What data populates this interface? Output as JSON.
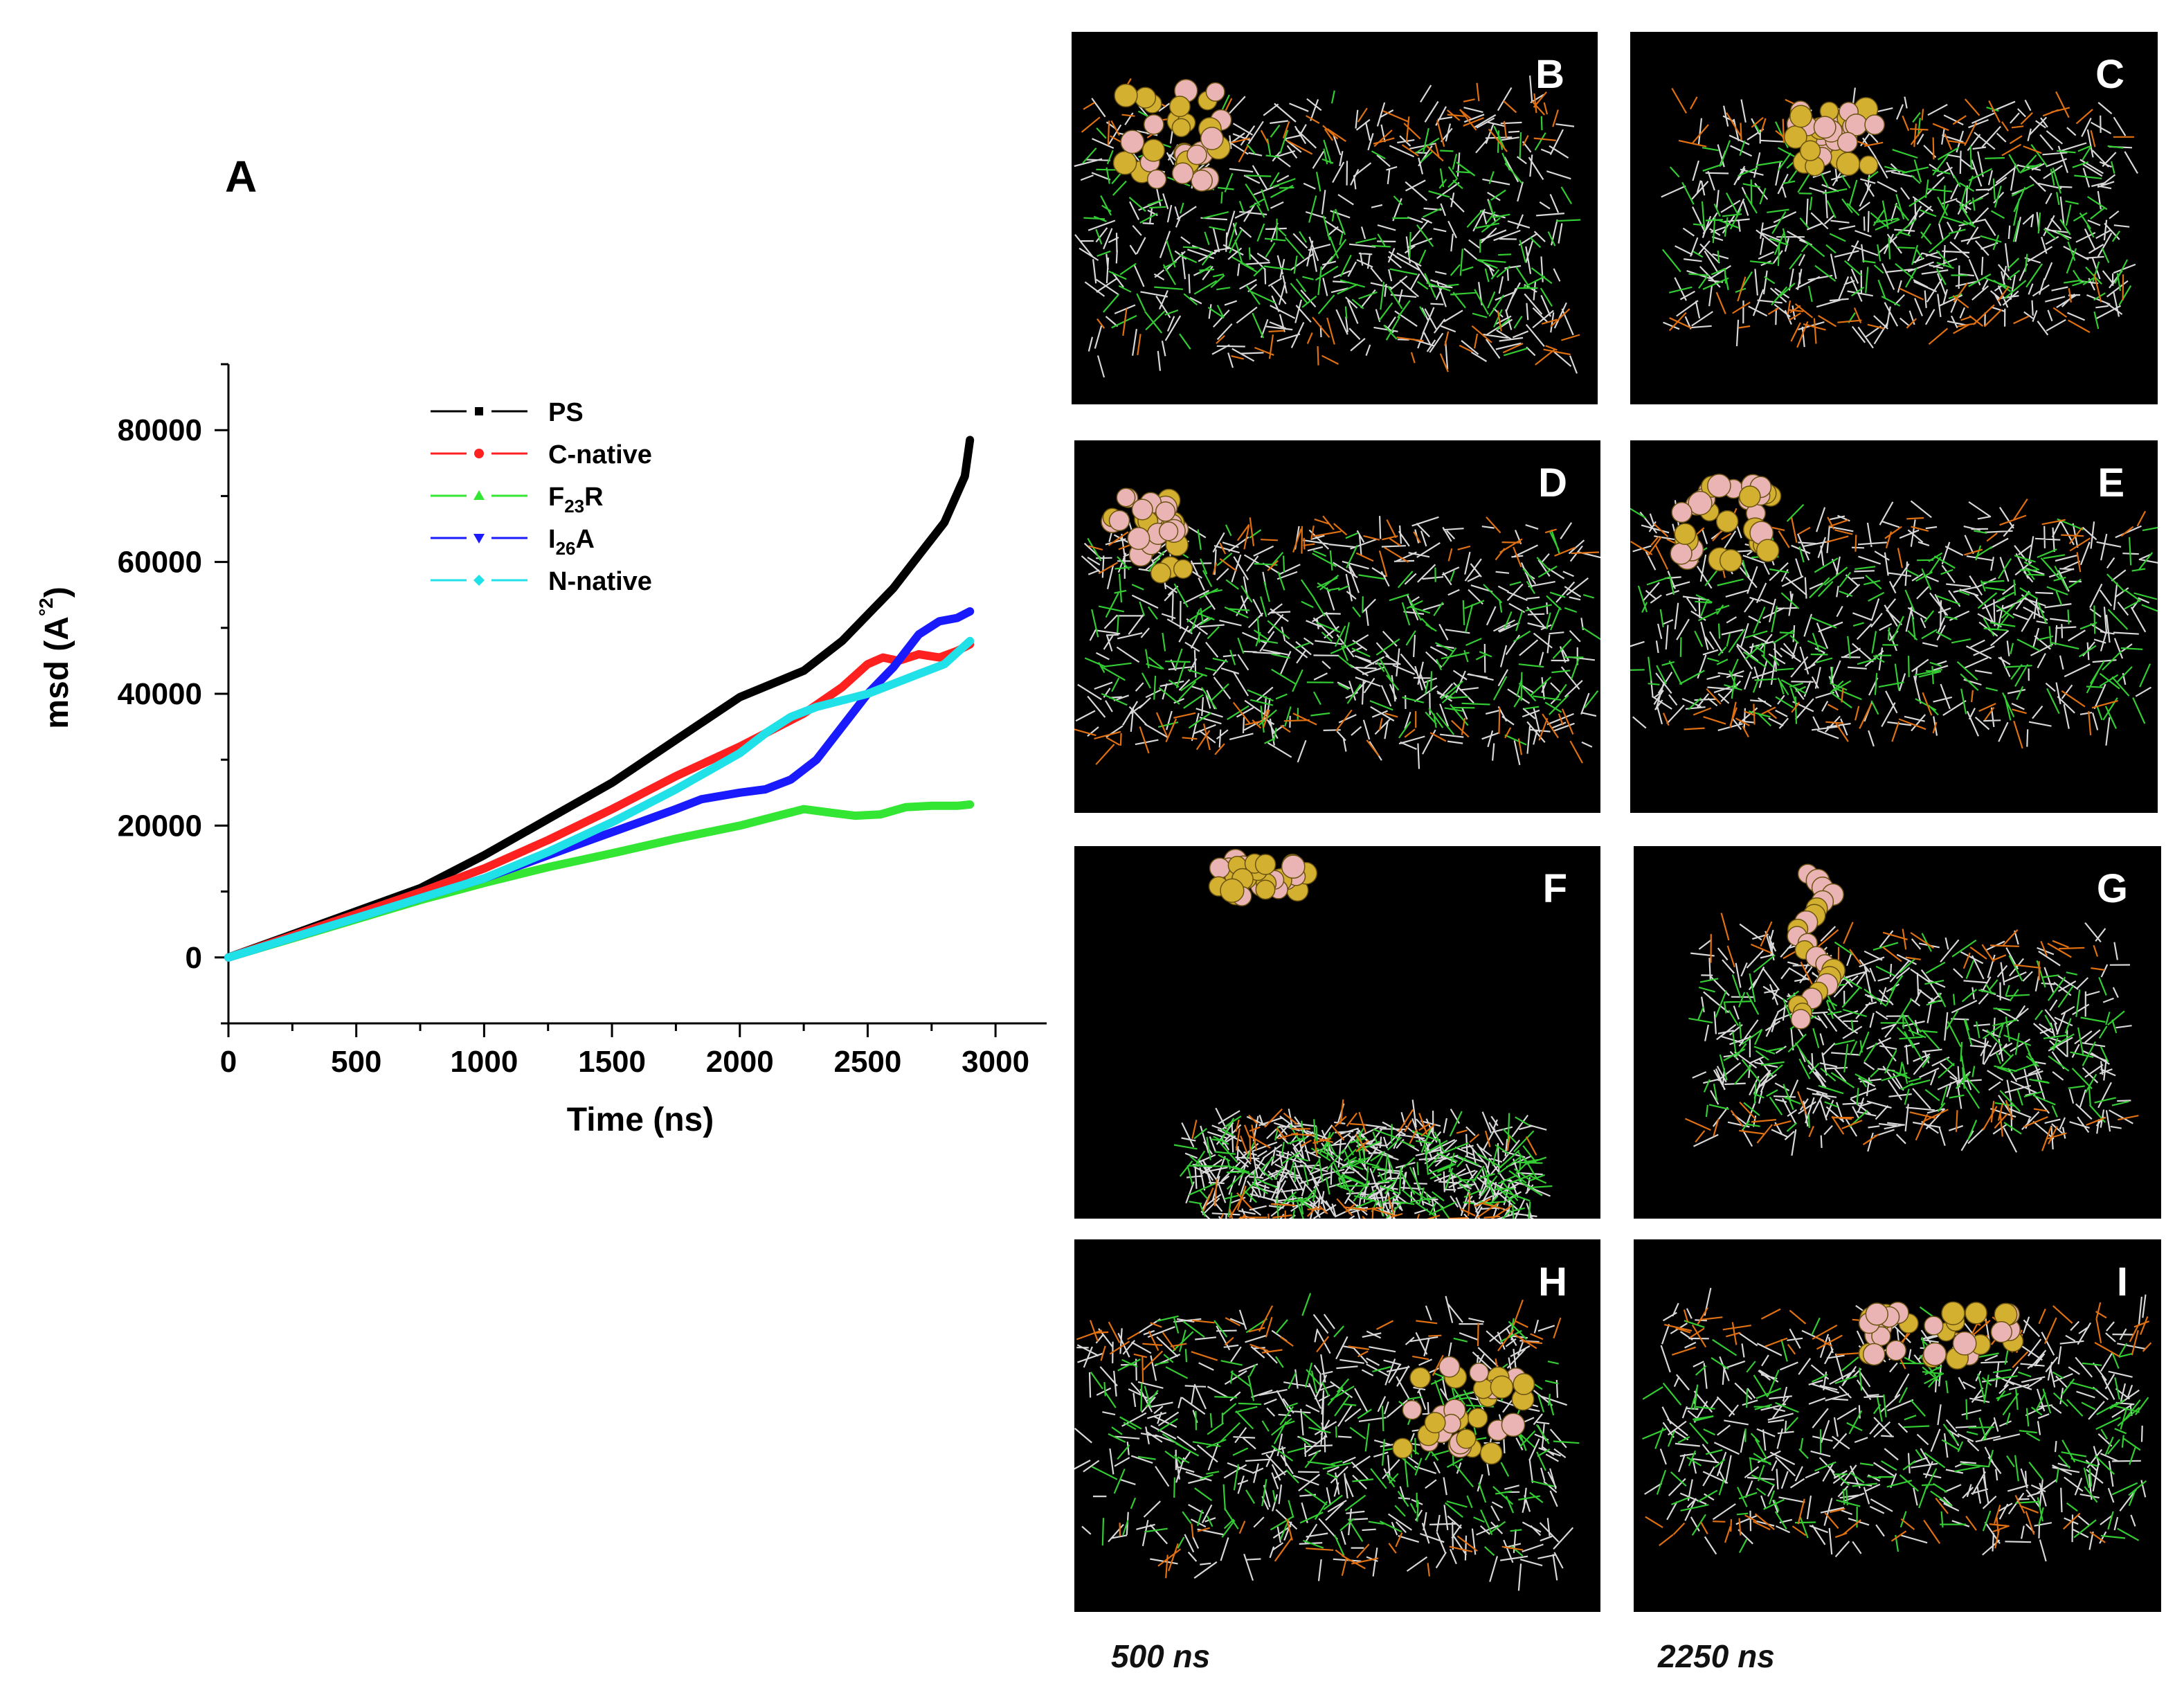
{
  "figure": {
    "panel_a_label": "A",
    "footer_left": "500 ns",
    "footer_right": "2250 ns"
  },
  "chart_data": {
    "type": "line",
    "title": "",
    "xlabel": "Time (ns)",
    "ylabel_main": "msd (A",
    "ylabel_super": "°2",
    "ylabel_close": ")",
    "xlim": [
      0,
      3200
    ],
    "ylim": [
      -10000,
      90000
    ],
    "xticks": [
      "0",
      "500",
      "1000",
      "1500",
      "2000",
      "2500",
      "3000"
    ],
    "yticks": [
      "0",
      "20000",
      "40000",
      "60000",
      "80000"
    ],
    "grid": false,
    "legend_position": "top-right",
    "series": [
      {
        "name": "PS",
        "name_main": "PS",
        "name_sub": "",
        "name_tail": "",
        "color": "#000000",
        "x": [
          0,
          250,
          500,
          750,
          1000,
          1250,
          1500,
          1750,
          2000,
          2250,
          2400,
          2500,
          2600,
          2700,
          2800,
          2880,
          2900
        ],
        "y": [
          0,
          3500,
          7000,
          10500,
          15500,
          21000,
          26500,
          33000,
          39500,
          43500,
          48000,
          52000,
          56000,
          61000,
          66000,
          73000,
          78500
        ]
      },
      {
        "name": "C-native",
        "name_main": "C-native",
        "name_sub": "",
        "name_tail": "",
        "color": "#ff2020",
        "x": [
          0,
          250,
          500,
          750,
          1000,
          1250,
          1500,
          1750,
          2000,
          2250,
          2400,
          2500,
          2560,
          2620,
          2700,
          2780,
          2850,
          2900
        ],
        "y": [
          0,
          3300,
          6600,
          9900,
          13500,
          17800,
          22500,
          27500,
          32000,
          37000,
          41000,
          44500,
          45500,
          45000,
          46000,
          45500,
          46500,
          47500
        ]
      },
      {
        "name": "F23R",
        "name_main": "F",
        "name_sub": "23",
        "name_tail": "R",
        "color": "#33e633",
        "x": [
          0,
          250,
          500,
          750,
          1000,
          1250,
          1500,
          1750,
          2000,
          2150,
          2250,
          2350,
          2450,
          2550,
          2650,
          2750,
          2850,
          2900
        ],
        "y": [
          0,
          2900,
          5800,
          8700,
          11300,
          13700,
          15800,
          18000,
          20000,
          21500,
          22500,
          22000,
          21500,
          21700,
          22800,
          23000,
          23000,
          23200
        ]
      },
      {
        "name": "I26A",
        "name_main": "I",
        "name_sub": "26",
        "name_tail": "A",
        "color": "#1a1aff",
        "x": [
          0,
          250,
          500,
          750,
          1000,
          1250,
          1500,
          1750,
          1850,
          2000,
          2100,
          2200,
          2300,
          2400,
          2500,
          2600,
          2700,
          2780,
          2850,
          2900
        ],
        "y": [
          0,
          3000,
          6000,
          9000,
          12000,
          15500,
          19000,
          22500,
          24000,
          25000,
          25500,
          27000,
          30000,
          35000,
          40000,
          44000,
          49000,
          51000,
          51500,
          52500
        ]
      },
      {
        "name": "N-native",
        "name_main": "N-native",
        "name_sub": "",
        "name_tail": "",
        "color": "#20e0e8",
        "x": [
          0,
          250,
          500,
          750,
          1000,
          1250,
          1500,
          1750,
          2000,
          2100,
          2200,
          2300,
          2400,
          2500,
          2600,
          2700,
          2800,
          2900
        ],
        "y": [
          0,
          3000,
          6000,
          9000,
          12000,
          16000,
          20500,
          25500,
          31000,
          34000,
          36500,
          38000,
          39000,
          40000,
          41500,
          43000,
          44500,
          48000
        ]
      }
    ]
  },
  "snapshots": [
    {
      "label": "B"
    },
    {
      "label": "C"
    },
    {
      "label": "D"
    },
    {
      "label": "E"
    },
    {
      "label": "F"
    },
    {
      "label": "G"
    },
    {
      "label": "H"
    },
    {
      "label": "I"
    }
  ],
  "colors": {
    "snapshot_bg": "#000000",
    "lipid_white": "#d8d8d8",
    "lipid_green": "#33cc33",
    "lipid_orange": "#e07010",
    "peptide_yellow": "#d4b030",
    "peptide_pink": "#eab4b4"
  }
}
